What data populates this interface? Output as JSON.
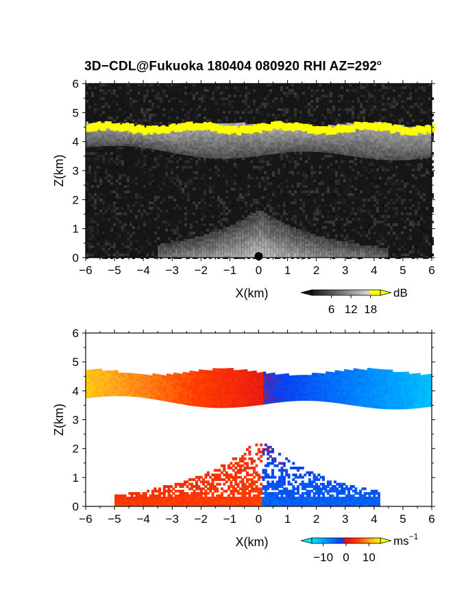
{
  "title": "3D−CDL@Fukuoka 180404 080920 RHI AZ=292",
  "title_superscript": "o",
  "chart_data": [
    {
      "type": "heatmap",
      "panel": "backscatter",
      "xlabel": "X(km)",
      "ylabel": "Z(km)",
      "xlim": [
        -6,
        6
      ],
      "ylim": [
        0,
        6
      ],
      "x_ticks": [
        "−6",
        "−5",
        "−4",
        "−3",
        "−2",
        "−1",
        "0",
        "1",
        "2",
        "3",
        "4",
        "5",
        "6"
      ],
      "y_ticks": [
        "0",
        "1",
        "2",
        "3",
        "4",
        "5",
        "6"
      ],
      "colorbar": {
        "unit": "dB",
        "ticks": [
          6,
          12,
          18
        ],
        "tick_labels": [
          "6",
          "12",
          "18"
        ],
        "range": [
          0,
          21
        ],
        "colormap": "gray-to-yellow"
      },
      "features": [
        {
          "name": "cloud base layer",
          "x_range": [
            -6,
            6
          ],
          "z_top_km": 4.6,
          "z_bottom_km": 3.6,
          "value_db": 14
        },
        {
          "name": "cloud edge (high)",
          "x_range": [
            -6,
            6
          ],
          "z_km": 4.5,
          "value_db": 20
        },
        {
          "name": "near-ground return",
          "x_range": [
            -3.5,
            4.5
          ],
          "z_range": [
            0,
            1.6
          ],
          "value_db": 12
        }
      ],
      "colors": {
        "background": "#1a1a1a",
        "high": "#ffff00"
      }
    },
    {
      "type": "heatmap",
      "panel": "doppler velocity",
      "xlabel": "X(km)",
      "ylabel": "Z(km)",
      "xlim": [
        -6,
        6
      ],
      "ylim": [
        0,
        6
      ],
      "x_ticks": [
        "−6",
        "−5",
        "−4",
        "−3",
        "−2",
        "−1",
        "0",
        "1",
        "2",
        "3",
        "4",
        "5",
        "6"
      ],
      "y_ticks": [
        "0",
        "1",
        "2",
        "3",
        "4",
        "5",
        "6"
      ],
      "colorbar": {
        "unit": "ms",
        "unit_superscript": "−1",
        "ticks": [
          -10,
          0,
          10
        ],
        "tick_labels": [
          "−10",
          "0",
          "10"
        ],
        "range": [
          -15,
          15
        ],
        "colormap": "cyan-blue-red-yellow"
      },
      "features": [
        {
          "name": "cloud layer",
          "x_range": [
            -6,
            6
          ],
          "z_range": [
            3.6,
            4.8
          ],
          "velocity_at_xmin": 12,
          "velocity_at_xmax": -10
        },
        {
          "name": "low-level flow",
          "x_range": [
            -5,
            4.2
          ],
          "z_range": [
            0,
            2.3
          ],
          "velocity_left_of_zero": 3,
          "velocity_right_of_zero": -3
        }
      ]
    }
  ]
}
